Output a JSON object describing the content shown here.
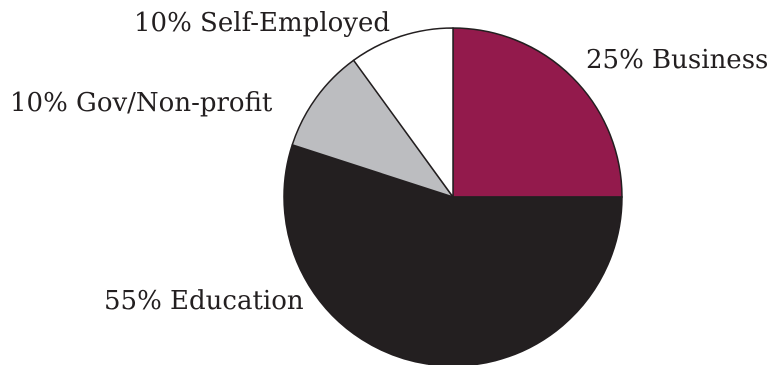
{
  "chart_data": {
    "type": "pie",
    "start_angle_deg": 0,
    "direction": "clockwise",
    "slices": [
      {
        "label": "25% Business",
        "category": "Business",
        "value": 25,
        "color": "#931a4c"
      },
      {
        "label": "55% Education",
        "category": "Education",
        "value": 55,
        "color": "#231f20"
      },
      {
        "label": "10% Gov/Non-profit",
        "category": "Gov/Non-profit",
        "value": 10,
        "color": "#bcbdc0"
      },
      {
        "label": "10% Self-Employed",
        "category": "Self-Employed",
        "value": 10,
        "color": "#ffffff"
      }
    ],
    "title": "",
    "legend": "none",
    "unit": "%"
  }
}
